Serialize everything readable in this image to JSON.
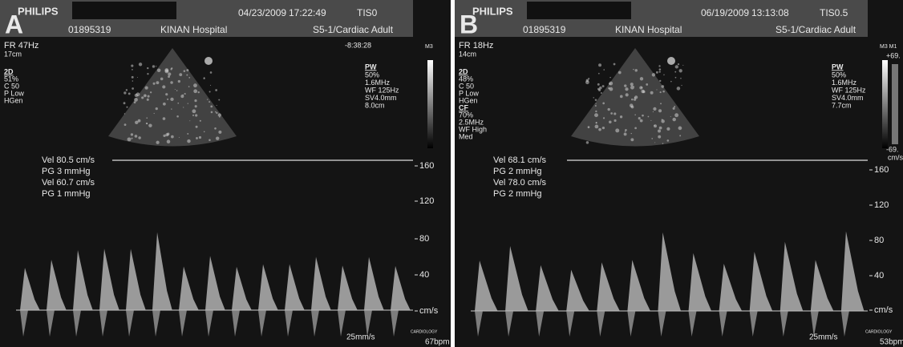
{
  "panels": [
    {
      "label": "A",
      "header": {
        "brand": "PHILIPS",
        "date": "04/23/2009",
        "time": "17:22:49",
        "tis": "TIS0",
        "patient_id": "01895319",
        "hospital": "KINAN Hospital",
        "probe": "S5-1/Cardiac Adult"
      },
      "frame_rate": "FR 47Hz",
      "depth": "17cm",
      "clock": "-8:38:28",
      "map": "M3",
      "mode_params": [
        {
          "heading": "2D",
          "lines": [
            "51%",
            "C 50",
            "P Low",
            "HGen"
          ]
        }
      ],
      "pw": {
        "heading": "PW",
        "lines": [
          "50%",
          "1.6MHz",
          "WF 125Hz",
          "SV4.0mm",
          "8.0cm"
        ]
      },
      "measurements": [
        "Vel 80.5 cm/s",
        "PG 3 mmHg",
        "Vel 60.7 cm/s",
        "PG 1 mmHg"
      ],
      "scale": [
        "160",
        "120",
        "80",
        "40",
        "cm/s"
      ],
      "sweep": "25mm/s",
      "footer_tag": "CARDIOLOGY",
      "heart_rate": "67bpm"
    },
    {
      "label": "B",
      "header": {
        "brand": "PHILIPS",
        "date": "06/19/2009",
        "time": "13:13:08",
        "tis": "TIS0.5",
        "patient_id": "01895319",
        "hospital": "KINAN Hospital",
        "probe": "S5-1/Cardiac Adult"
      },
      "frame_rate": "FR 18Hz",
      "depth": "14cm",
      "map": "M3 M1",
      "mode_params": [
        {
          "heading": "2D",
          "lines": [
            "48%",
            "C 50",
            "P Low",
            "HGen"
          ]
        },
        {
          "heading": "CF",
          "lines": [
            "70%",
            "2.5MHz",
            "WF High",
            "Med"
          ]
        }
      ],
      "pw": {
        "heading": "PW",
        "lines": [
          "50%",
          "1.6MHz",
          "WF 125Hz",
          "SV4.0mm",
          "7.7cm"
        ]
      },
      "color_scale": [
        "+69.",
        "-69.",
        "cm/s"
      ],
      "measurements": [
        "Vel 68.1 cm/s",
        "PG 2 mmHg",
        "Vel 78.0 cm/s",
        "PG 2 mmHg"
      ],
      "scale": [
        "160",
        "120",
        "80",
        "40",
        "cm/s"
      ],
      "sweep": "25mm/s",
      "footer_tag": "CARDIOLOGY",
      "heart_rate": "53bpm"
    }
  ]
}
